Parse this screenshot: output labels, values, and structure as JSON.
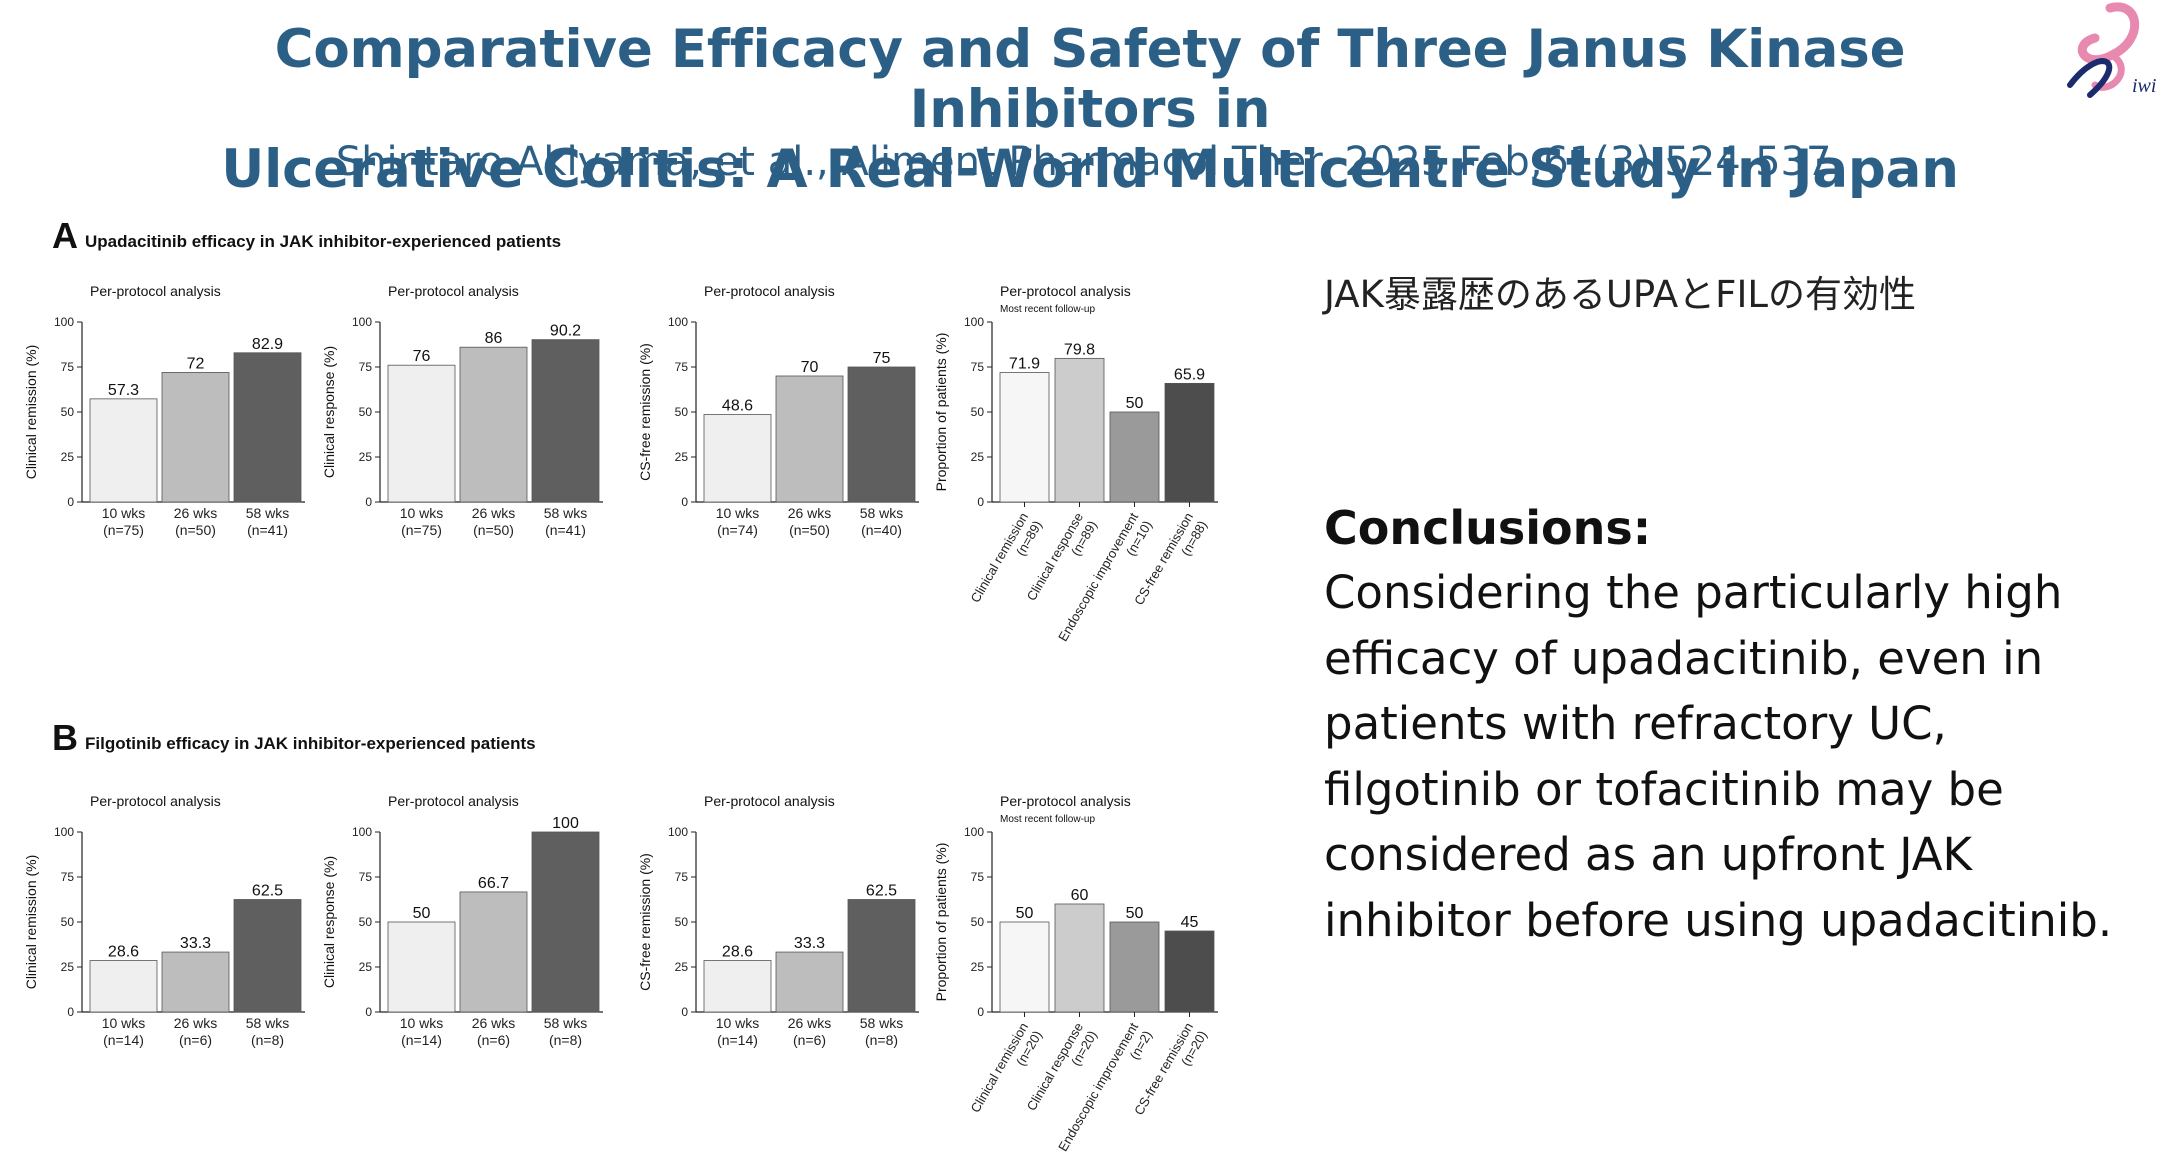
{
  "slide": {
    "title_line1": "Comparative Efficacy and Safety of Three Janus Kinase Inhibitors in",
    "title_line2": "Ulcerative Colitis: A Real-World Multicentre Study in Japan",
    "citation": "Shintaro Akiyama, et al., Aliment Pharmacol Ther. 2025 Feb;61(3):524-537.",
    "logo_text": "iwi",
    "jp_note": "JAK暴露歴のあるUPAとFILの有効性",
    "conclusion_heading": "Conclusions:",
    "conclusion_text": "Considering the particularly high efficacy of upadacitinib, even in patients with refractory UC, filgotinib or tofacitinib may be considered as an upfront JAK inhibitor before using upadacitinib."
  },
  "panels": [
    {
      "letter": "A",
      "title": "Upadacitinib efficacy in JAK inhibitor-experienced patients"
    },
    {
      "letter": "B",
      "title": "Filgotinib efficacy in JAK inhibitor-experienced patients"
    }
  ],
  "colors": {
    "title": "#2c5f86",
    "bar_light": "#efefef",
    "bar_mid": "#bdbdbd",
    "bar_mid_dark": "#9a9a9a",
    "bar_dark": "#5f5f5f",
    "bar_darkest": "#4d4d4d",
    "logo_pink": "#e889b0",
    "logo_blue": "#1c2a6e"
  },
  "chart_data": [
    {
      "id": "A1",
      "type": "bar",
      "heading": "Per-protocol analysis",
      "subheading": "",
      "ylabel": "Clinical remission (%)",
      "ylim": [
        0,
        100
      ],
      "yticks": [
        0,
        25,
        50,
        75,
        100
      ],
      "categories": [
        "10 wks\n(n=75)",
        "26 wks\n(n=50)",
        "58 wks\n(n=41)"
      ],
      "values": [
        57.3,
        72,
        82.9
      ],
      "value_labels": [
        "57.3",
        "72",
        "82.9"
      ],
      "colors": [
        "#efefef",
        "#bdbdbd",
        "#5f5f5f"
      ],
      "rotated": false
    },
    {
      "id": "A2",
      "type": "bar",
      "heading": "Per-protocol analysis",
      "subheading": "",
      "ylabel": "Clinical response (%)",
      "ylim": [
        0,
        100
      ],
      "yticks": [
        0,
        25,
        50,
        75,
        100
      ],
      "categories": [
        "10 wks\n(n=75)",
        "26 wks\n(n=50)",
        "58 wks\n(n=41)"
      ],
      "values": [
        76,
        86,
        90.2
      ],
      "value_labels": [
        "76",
        "86",
        "90.2"
      ],
      "colors": [
        "#efefef",
        "#bdbdbd",
        "#5f5f5f"
      ],
      "rotated": false
    },
    {
      "id": "A3",
      "type": "bar",
      "heading": "Per-protocol analysis",
      "subheading": "",
      "ylabel": "CS-free remission (%)",
      "ylim": [
        0,
        100
      ],
      "yticks": [
        0,
        25,
        50,
        75,
        100
      ],
      "categories": [
        "10 wks\n(n=74)",
        "26 wks\n(n=50)",
        "58 wks\n(n=40)"
      ],
      "values": [
        48.6,
        70,
        75
      ],
      "value_labels": [
        "48.6",
        "70",
        "75"
      ],
      "colors": [
        "#efefef",
        "#bdbdbd",
        "#5f5f5f"
      ],
      "rotated": false
    },
    {
      "id": "A4",
      "type": "bar",
      "heading": "Per-protocol analysis",
      "subheading": "Most recent follow-up",
      "ylabel": "Proportion of patients (%)",
      "ylim": [
        0,
        100
      ],
      "yticks": [
        0,
        25,
        50,
        75,
        100
      ],
      "categories": [
        "Clinical remission\n(n=89)",
        "Clinical response\n(n=89)",
        "Endoscopic improvement\n(n=10)",
        "CS-free remission\n(n=88)"
      ],
      "values": [
        71.9,
        79.8,
        50,
        65.9
      ],
      "value_labels": [
        "71.9",
        "79.8",
        "50",
        "65.9"
      ],
      "colors": [
        "#f6f6f6",
        "#cccccc",
        "#9a9a9a",
        "#4d4d4d"
      ],
      "rotated": true
    },
    {
      "id": "B1",
      "type": "bar",
      "heading": "Per-protocol analysis",
      "subheading": "",
      "ylabel": "Clinical remission (%)",
      "ylim": [
        0,
        100
      ],
      "yticks": [
        0,
        25,
        50,
        75,
        100
      ],
      "categories": [
        "10 wks\n(n=14)",
        "26 wks\n(n=6)",
        "58 wks\n(n=8)"
      ],
      "values": [
        28.6,
        33.3,
        62.5
      ],
      "value_labels": [
        "28.6",
        "33.3",
        "62.5"
      ],
      "colors": [
        "#efefef",
        "#bdbdbd",
        "#5f5f5f"
      ],
      "rotated": false
    },
    {
      "id": "B2",
      "type": "bar",
      "heading": "Per-protocol analysis",
      "subheading": "",
      "ylabel": "Clinical response (%)",
      "ylim": [
        0,
        100
      ],
      "yticks": [
        0,
        25,
        50,
        75,
        100
      ],
      "categories": [
        "10 wks\n(n=14)",
        "26 wks\n(n=6)",
        "58 wks\n(n=8)"
      ],
      "values": [
        50,
        66.7,
        100
      ],
      "value_labels": [
        "50",
        "66.7",
        "100"
      ],
      "colors": [
        "#efefef",
        "#bdbdbd",
        "#5f5f5f"
      ],
      "rotated": false
    },
    {
      "id": "B3",
      "type": "bar",
      "heading": "Per-protocol analysis",
      "subheading": "",
      "ylabel": "CS-free remission (%)",
      "ylim": [
        0,
        100
      ],
      "yticks": [
        0,
        25,
        50,
        75,
        100
      ],
      "categories": [
        "10 wks\n(n=14)",
        "26 wks\n(n=6)",
        "58 wks\n(n=8)"
      ],
      "values": [
        28.6,
        33.3,
        62.5
      ],
      "value_labels": [
        "28.6",
        "33.3",
        "62.5"
      ],
      "colors": [
        "#efefef",
        "#bdbdbd",
        "#5f5f5f"
      ],
      "rotated": false
    },
    {
      "id": "B4",
      "type": "bar",
      "heading": "Per-protocol analysis",
      "subheading": "Most recent follow-up",
      "ylabel": "Proportion of patients (%)",
      "ylim": [
        0,
        100
      ],
      "yticks": [
        0,
        25,
        50,
        75,
        100
      ],
      "categories": [
        "Clinical remission\n(n=20)",
        "Clinical response\n(n=20)",
        "Endoscopic improvement\n(n=2)",
        "CS-free remission\n(n=20)"
      ],
      "values": [
        50,
        60,
        50,
        45
      ],
      "value_labels": [
        "50",
        "60",
        "50",
        "45"
      ],
      "colors": [
        "#f6f6f6",
        "#cccccc",
        "#9a9a9a",
        "#4d4d4d"
      ],
      "rotated": true
    }
  ]
}
